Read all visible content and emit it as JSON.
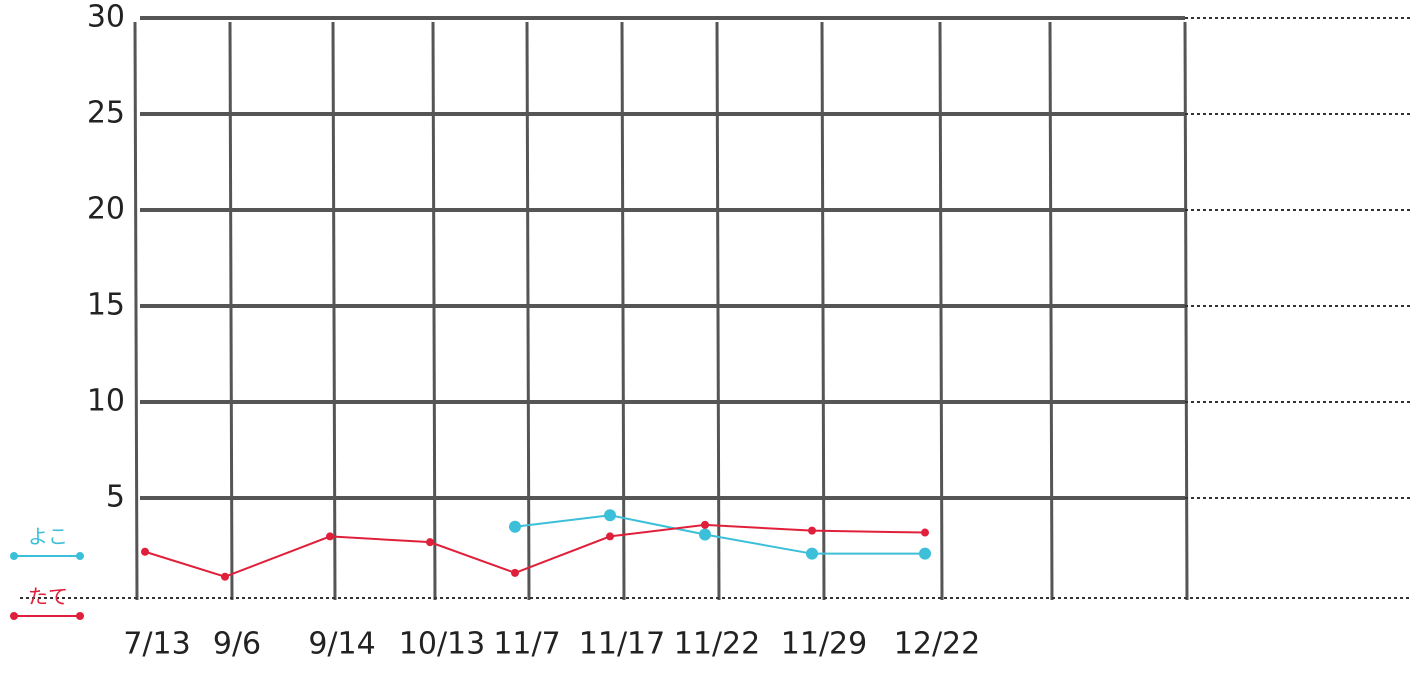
{
  "chart_data": {
    "type": "line",
    "categories": [
      "7/13",
      "9/6",
      "9/14",
      "10/13",
      "11/7",
      "11/17",
      "11/22",
      "11/29",
      "12/22"
    ],
    "series": [
      {
        "name": "よこ",
        "color": "#3cbfd8",
        "values": [
          null,
          null,
          null,
          null,
          3.5,
          4.1,
          3.1,
          2.1,
          2.1
        ]
      },
      {
        "name": "たて",
        "color": "#e0203a",
        "values": [
          2.2,
          0.9,
          3.0,
          2.7,
          1.1,
          3.0,
          3.6,
          3.3,
          3.2
        ]
      }
    ],
    "ylim": [
      0,
      30
    ],
    "yticks": [
      5,
      10,
      15,
      20,
      25,
      30
    ],
    "grid": true
  }
}
